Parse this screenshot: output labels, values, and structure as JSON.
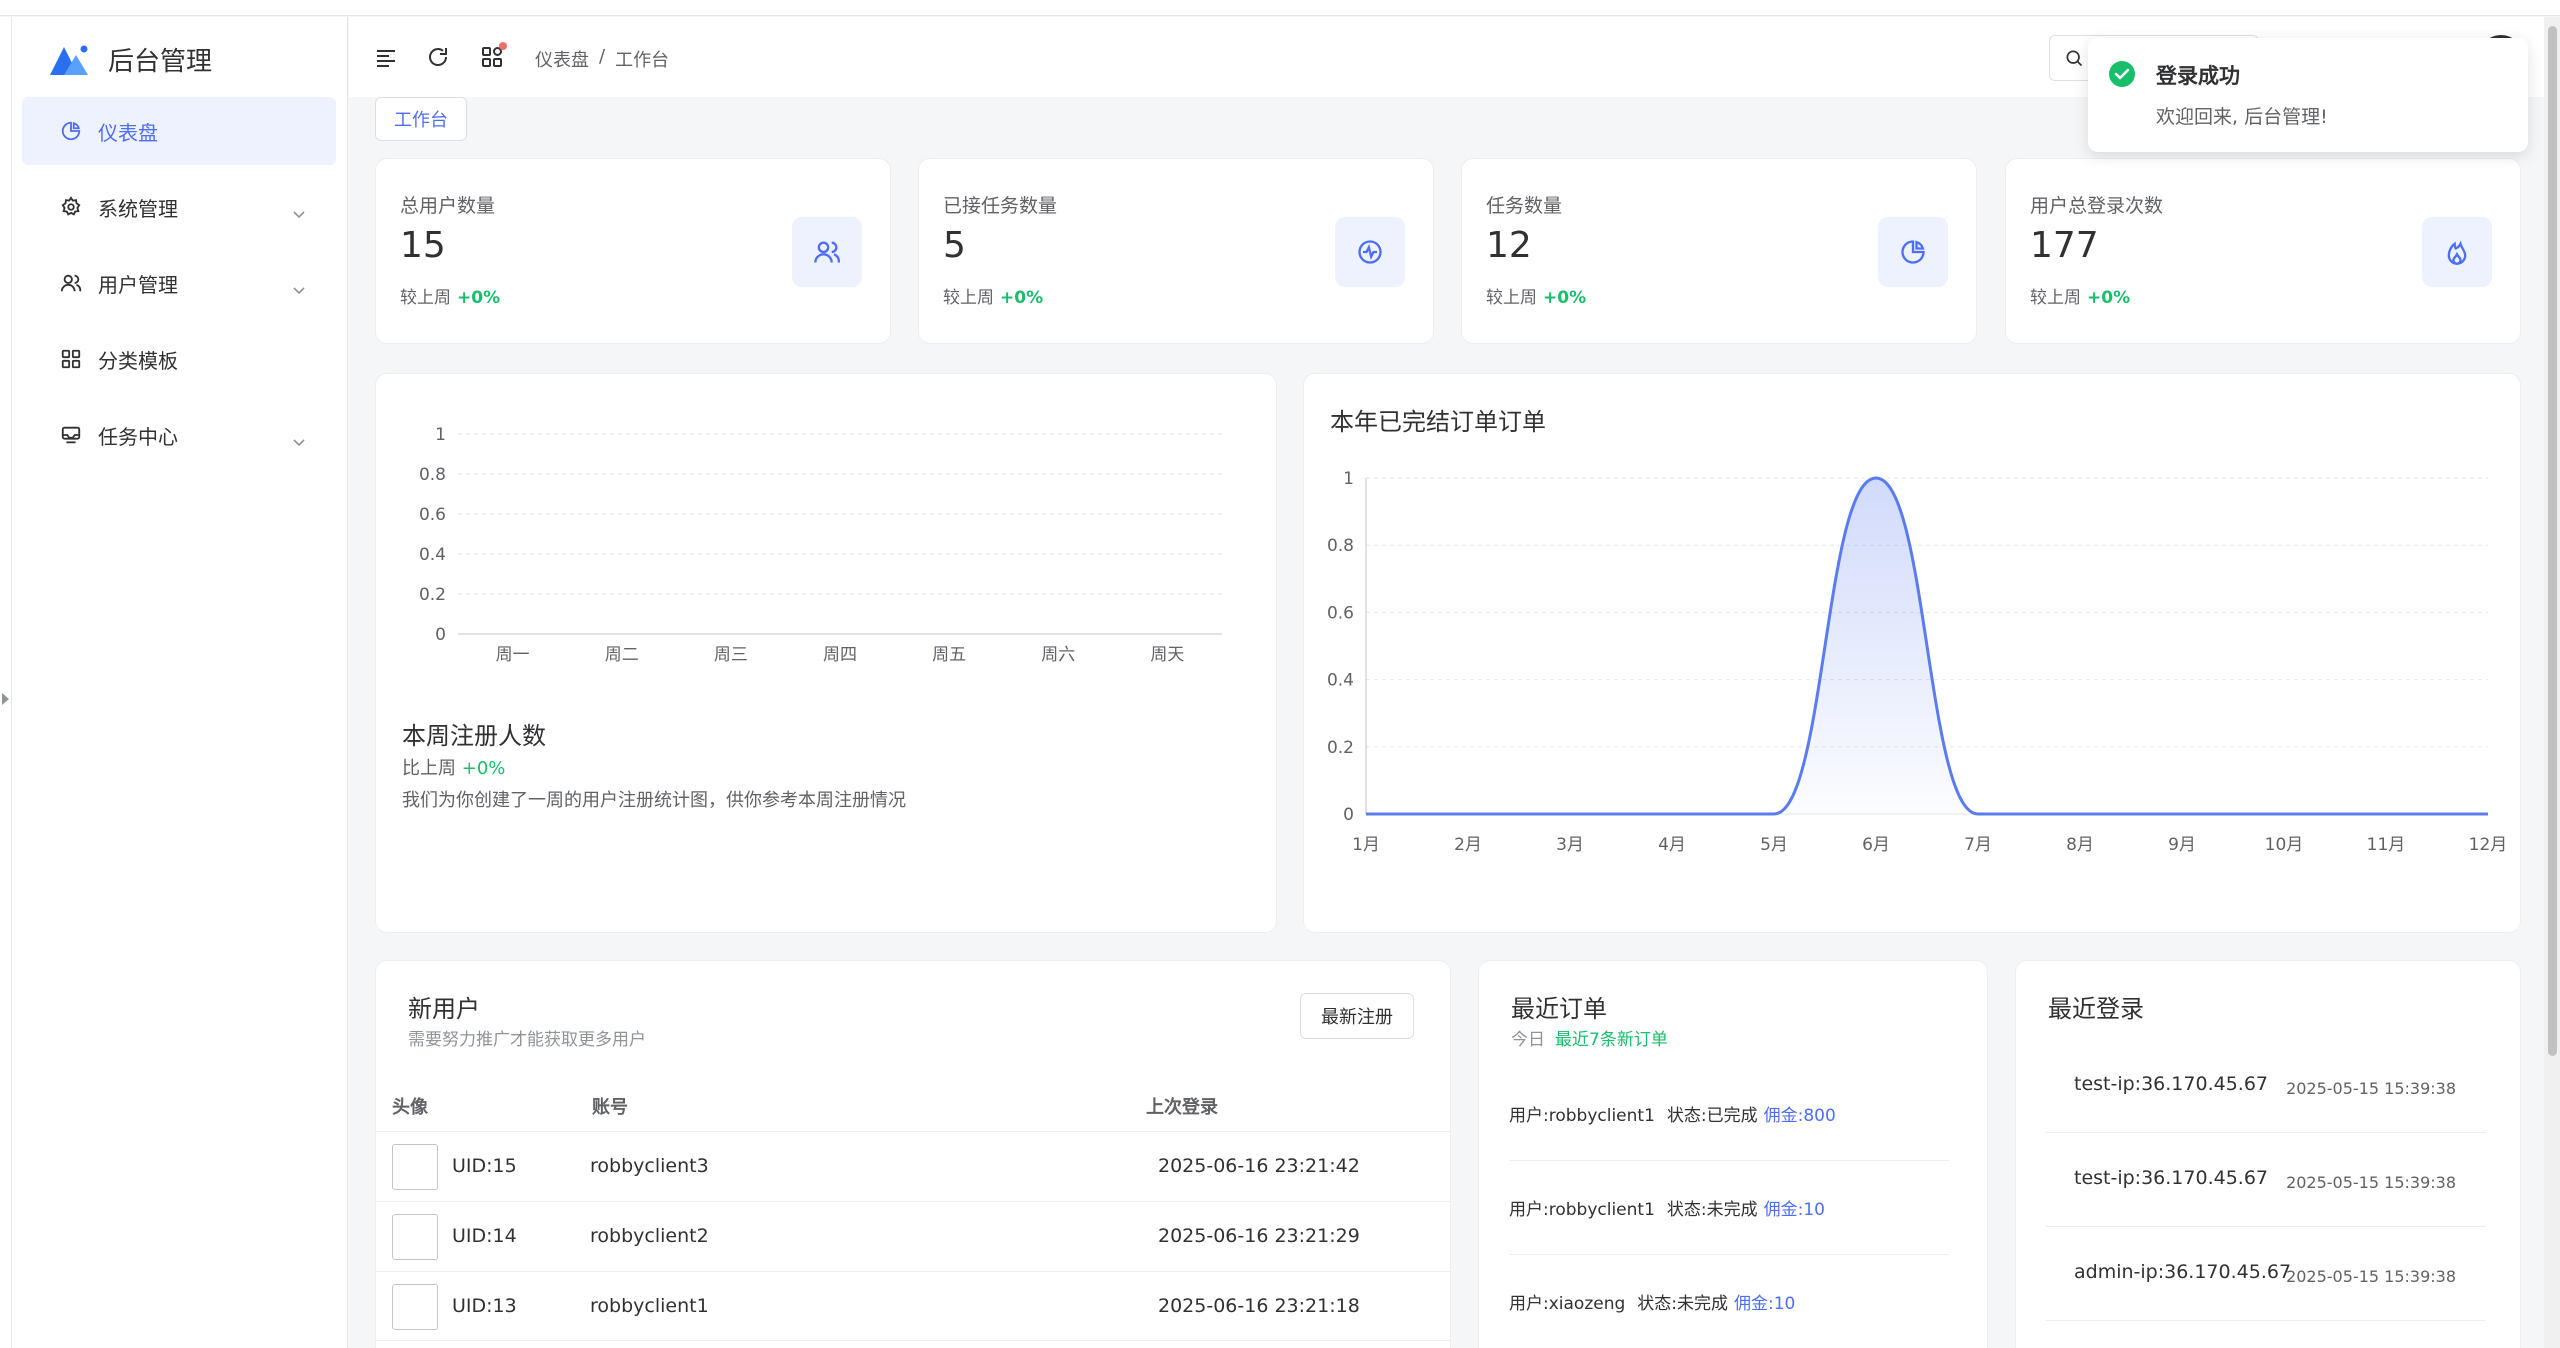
{
  "app": {
    "title": "后台管理"
  },
  "sidebar": {
    "items": [
      {
        "label": "仪表盘",
        "icon": "pie-chart-icon"
      },
      {
        "label": "系统管理",
        "icon": "gear-icon"
      },
      {
        "label": "用户管理",
        "icon": "users-icon"
      },
      {
        "label": "分类模板",
        "icon": "grid-icon"
      },
      {
        "label": "任务中心",
        "icon": "inbox-icon"
      }
    ]
  },
  "header": {
    "breadcrumb": [
      "仪表盘",
      "/",
      "工作台"
    ]
  },
  "tags": [
    "工作台"
  ],
  "stats": [
    {
      "title": "总用户数量",
      "value": "15",
      "compare": "较上周",
      "change": "+0%"
    },
    {
      "title": "已接任务数量",
      "value": "5",
      "compare": "较上周",
      "change": "+0%"
    },
    {
      "title": "任务数量",
      "value": "12",
      "compare": "较上周",
      "change": "+0%"
    },
    {
      "title": "用户总登录次数",
      "value": "177",
      "compare": "较上周",
      "change": "+0%"
    }
  ],
  "weekly": {
    "title": "本周注册人数",
    "compare": "比上周",
    "change": "+0%",
    "desc": "我们为你创建了一周的用户注册统计图，供你参考本周注册情况"
  },
  "orders_chart": {
    "title": "本年已完结订单订单"
  },
  "chart_data": [
    {
      "type": "bar",
      "categories": [
        "周一",
        "周二",
        "周三",
        "周四",
        "周五",
        "周六",
        "周天"
      ],
      "values": [
        0,
        0,
        0,
        0,
        0,
        0,
        0
      ],
      "ylim": [
        0,
        1
      ],
      "yticks": [
        "0",
        "0.2",
        "0.4",
        "0.6",
        "0.8",
        "1"
      ],
      "grid": true
    },
    {
      "type": "area",
      "categories": [
        "1月",
        "2月",
        "3月",
        "4月",
        "5月",
        "6月",
        "7月",
        "8月",
        "9月",
        "10月",
        "11月",
        "12月"
      ],
      "values": [
        0,
        0,
        0,
        0,
        0,
        1,
        0,
        0,
        0,
        0,
        0,
        0
      ],
      "ylim": [
        0,
        1
      ],
      "yticks": [
        "0",
        "0.2",
        "0.4",
        "0.6",
        "0.8",
        "1"
      ],
      "grid": true,
      "color": "#5b7cf0"
    }
  ],
  "new_users": {
    "title": "新用户",
    "subtitle": "需要努力推广才能获取更多用户",
    "button": "最新注册",
    "columns": [
      "头像",
      "账号",
      "上次登录"
    ],
    "rows": [
      {
        "uid": "UID:15",
        "account": "robbyclient3",
        "last_login": "2025-06-16 23:21:42"
      },
      {
        "uid": "UID:14",
        "account": "robbyclient2",
        "last_login": "2025-06-16 23:21:29"
      },
      {
        "uid": "UID:13",
        "account": "robbyclient1",
        "last_login": "2025-06-16 23:21:18"
      }
    ]
  },
  "recent_orders": {
    "title": "最近订单",
    "today": "今日",
    "new_label": "最近7条新订单",
    "items": [
      {
        "user": "用户:robbyclient1",
        "status": "状态:已完成",
        "amount": "佣金:800"
      },
      {
        "user": "用户:robbyclient1",
        "status": "状态:未完成",
        "amount": "佣金:10"
      },
      {
        "user": "用户:xiaozeng",
        "status": "状态:未完成",
        "amount": "佣金:10"
      }
    ]
  },
  "recent_logins": {
    "title": "最近登录",
    "items": [
      {
        "ip": "test-ip:36.170.45.67",
        "time": "2025-05-15 15:39:38"
      },
      {
        "ip": "test-ip:36.170.45.67",
        "time": "2025-05-15 15:39:38"
      },
      {
        "ip": "admin-ip:36.170.45.67",
        "time": "2025-05-15 15:39:38"
      }
    ]
  },
  "toast": {
    "title": "登录成功",
    "message": "欢迎回来, 后台管理!"
  },
  "colors": {
    "accent": "#4f6ef7",
    "success": "#19be6b",
    "line": "#5b7cf0"
  }
}
